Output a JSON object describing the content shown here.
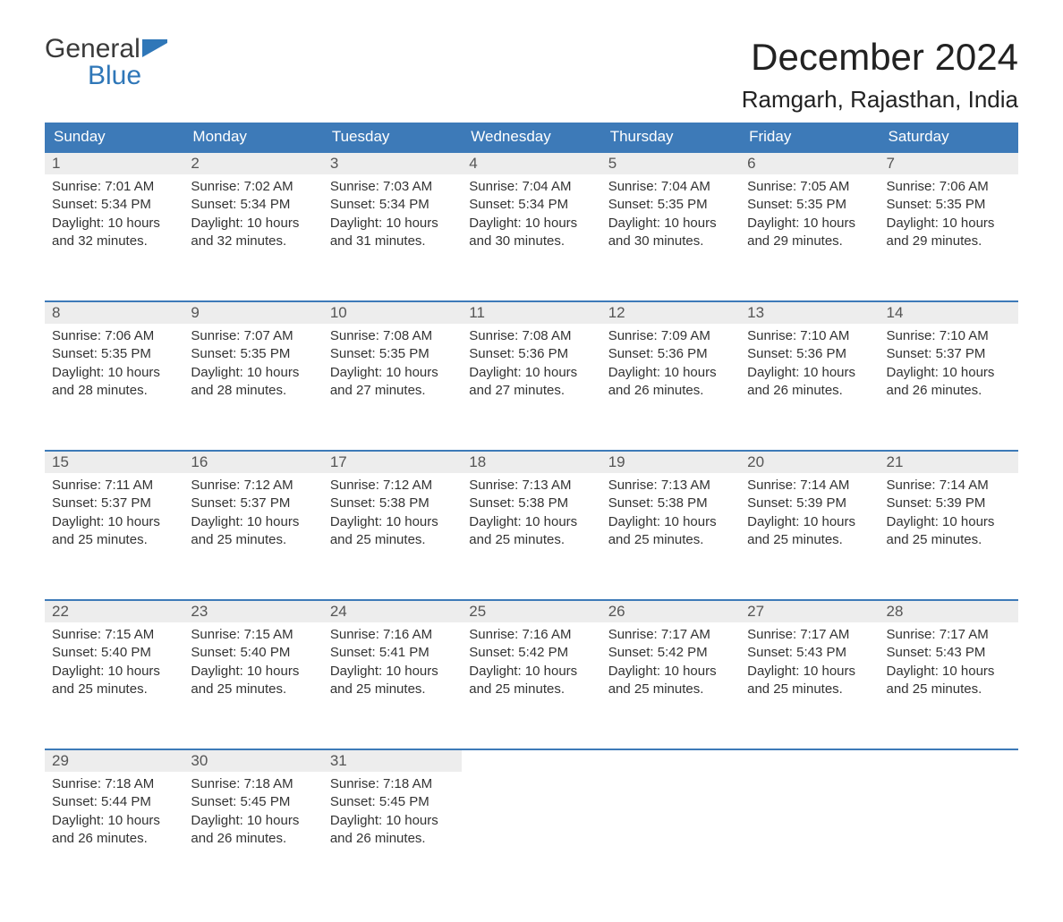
{
  "logo": {
    "line1": "General",
    "line2": "Blue"
  },
  "title": "December 2024",
  "location": "Ramgarh, Rajasthan, India",
  "colors": {
    "header_bg": "#3d7ab8",
    "header_text": "#ffffff",
    "daynum_bg": "#ededed",
    "rule": "#3d7ab8",
    "logo_blue": "#2f77b8",
    "text": "#333333"
  },
  "weekdays": [
    "Sunday",
    "Monday",
    "Tuesday",
    "Wednesday",
    "Thursday",
    "Friday",
    "Saturday"
  ],
  "weeks": [
    [
      {
        "n": "1",
        "sunrise": "Sunrise: 7:01 AM",
        "sunset": "Sunset: 5:34 PM",
        "dl1": "Daylight: 10 hours",
        "dl2": "and 32 minutes."
      },
      {
        "n": "2",
        "sunrise": "Sunrise: 7:02 AM",
        "sunset": "Sunset: 5:34 PM",
        "dl1": "Daylight: 10 hours",
        "dl2": "and 32 minutes."
      },
      {
        "n": "3",
        "sunrise": "Sunrise: 7:03 AM",
        "sunset": "Sunset: 5:34 PM",
        "dl1": "Daylight: 10 hours",
        "dl2": "and 31 minutes."
      },
      {
        "n": "4",
        "sunrise": "Sunrise: 7:04 AM",
        "sunset": "Sunset: 5:34 PM",
        "dl1": "Daylight: 10 hours",
        "dl2": "and 30 minutes."
      },
      {
        "n": "5",
        "sunrise": "Sunrise: 7:04 AM",
        "sunset": "Sunset: 5:35 PM",
        "dl1": "Daylight: 10 hours",
        "dl2": "and 30 minutes."
      },
      {
        "n": "6",
        "sunrise": "Sunrise: 7:05 AM",
        "sunset": "Sunset: 5:35 PM",
        "dl1": "Daylight: 10 hours",
        "dl2": "and 29 minutes."
      },
      {
        "n": "7",
        "sunrise": "Sunrise: 7:06 AM",
        "sunset": "Sunset: 5:35 PM",
        "dl1": "Daylight: 10 hours",
        "dl2": "and 29 minutes."
      }
    ],
    [
      {
        "n": "8",
        "sunrise": "Sunrise: 7:06 AM",
        "sunset": "Sunset: 5:35 PM",
        "dl1": "Daylight: 10 hours",
        "dl2": "and 28 minutes."
      },
      {
        "n": "9",
        "sunrise": "Sunrise: 7:07 AM",
        "sunset": "Sunset: 5:35 PM",
        "dl1": "Daylight: 10 hours",
        "dl2": "and 28 minutes."
      },
      {
        "n": "10",
        "sunrise": "Sunrise: 7:08 AM",
        "sunset": "Sunset: 5:35 PM",
        "dl1": "Daylight: 10 hours",
        "dl2": "and 27 minutes."
      },
      {
        "n": "11",
        "sunrise": "Sunrise: 7:08 AM",
        "sunset": "Sunset: 5:36 PM",
        "dl1": "Daylight: 10 hours",
        "dl2": "and 27 minutes."
      },
      {
        "n": "12",
        "sunrise": "Sunrise: 7:09 AM",
        "sunset": "Sunset: 5:36 PM",
        "dl1": "Daylight: 10 hours",
        "dl2": "and 26 minutes."
      },
      {
        "n": "13",
        "sunrise": "Sunrise: 7:10 AM",
        "sunset": "Sunset: 5:36 PM",
        "dl1": "Daylight: 10 hours",
        "dl2": "and 26 minutes."
      },
      {
        "n": "14",
        "sunrise": "Sunrise: 7:10 AM",
        "sunset": "Sunset: 5:37 PM",
        "dl1": "Daylight: 10 hours",
        "dl2": "and 26 minutes."
      }
    ],
    [
      {
        "n": "15",
        "sunrise": "Sunrise: 7:11 AM",
        "sunset": "Sunset: 5:37 PM",
        "dl1": "Daylight: 10 hours",
        "dl2": "and 25 minutes."
      },
      {
        "n": "16",
        "sunrise": "Sunrise: 7:12 AM",
        "sunset": "Sunset: 5:37 PM",
        "dl1": "Daylight: 10 hours",
        "dl2": "and 25 minutes."
      },
      {
        "n": "17",
        "sunrise": "Sunrise: 7:12 AM",
        "sunset": "Sunset: 5:38 PM",
        "dl1": "Daylight: 10 hours",
        "dl2": "and 25 minutes."
      },
      {
        "n": "18",
        "sunrise": "Sunrise: 7:13 AM",
        "sunset": "Sunset: 5:38 PM",
        "dl1": "Daylight: 10 hours",
        "dl2": "and 25 minutes."
      },
      {
        "n": "19",
        "sunrise": "Sunrise: 7:13 AM",
        "sunset": "Sunset: 5:38 PM",
        "dl1": "Daylight: 10 hours",
        "dl2": "and 25 minutes."
      },
      {
        "n": "20",
        "sunrise": "Sunrise: 7:14 AM",
        "sunset": "Sunset: 5:39 PM",
        "dl1": "Daylight: 10 hours",
        "dl2": "and 25 minutes."
      },
      {
        "n": "21",
        "sunrise": "Sunrise: 7:14 AM",
        "sunset": "Sunset: 5:39 PM",
        "dl1": "Daylight: 10 hours",
        "dl2": "and 25 minutes."
      }
    ],
    [
      {
        "n": "22",
        "sunrise": "Sunrise: 7:15 AM",
        "sunset": "Sunset: 5:40 PM",
        "dl1": "Daylight: 10 hours",
        "dl2": "and 25 minutes."
      },
      {
        "n": "23",
        "sunrise": "Sunrise: 7:15 AM",
        "sunset": "Sunset: 5:40 PM",
        "dl1": "Daylight: 10 hours",
        "dl2": "and 25 minutes."
      },
      {
        "n": "24",
        "sunrise": "Sunrise: 7:16 AM",
        "sunset": "Sunset: 5:41 PM",
        "dl1": "Daylight: 10 hours",
        "dl2": "and 25 minutes."
      },
      {
        "n": "25",
        "sunrise": "Sunrise: 7:16 AM",
        "sunset": "Sunset: 5:42 PM",
        "dl1": "Daylight: 10 hours",
        "dl2": "and 25 minutes."
      },
      {
        "n": "26",
        "sunrise": "Sunrise: 7:17 AM",
        "sunset": "Sunset: 5:42 PM",
        "dl1": "Daylight: 10 hours",
        "dl2": "and 25 minutes."
      },
      {
        "n": "27",
        "sunrise": "Sunrise: 7:17 AM",
        "sunset": "Sunset: 5:43 PM",
        "dl1": "Daylight: 10 hours",
        "dl2": "and 25 minutes."
      },
      {
        "n": "28",
        "sunrise": "Sunrise: 7:17 AM",
        "sunset": "Sunset: 5:43 PM",
        "dl1": "Daylight: 10 hours",
        "dl2": "and 25 minutes."
      }
    ],
    [
      {
        "n": "29",
        "sunrise": "Sunrise: 7:18 AM",
        "sunset": "Sunset: 5:44 PM",
        "dl1": "Daylight: 10 hours",
        "dl2": "and 26 minutes."
      },
      {
        "n": "30",
        "sunrise": "Sunrise: 7:18 AM",
        "sunset": "Sunset: 5:45 PM",
        "dl1": "Daylight: 10 hours",
        "dl2": "and 26 minutes."
      },
      {
        "n": "31",
        "sunrise": "Sunrise: 7:18 AM",
        "sunset": "Sunset: 5:45 PM",
        "dl1": "Daylight: 10 hours",
        "dl2": "and 26 minutes."
      },
      null,
      null,
      null,
      null
    ]
  ]
}
